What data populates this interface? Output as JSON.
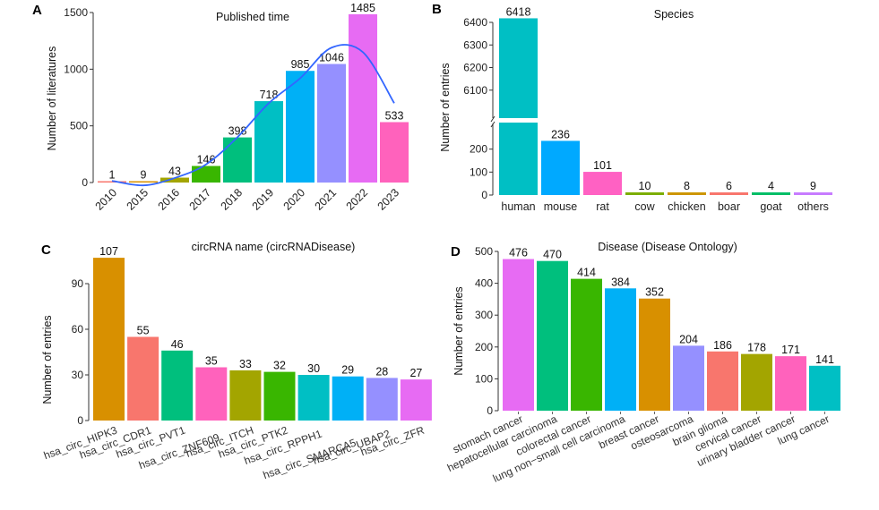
{
  "chart_data": [
    {
      "panel": "A",
      "type": "bar",
      "title": "Published time",
      "xlabel": "",
      "ylabel": "Number of literatures",
      "ylim": [
        0,
        1500
      ],
      "yticks": [
        0,
        500,
        1000,
        1500
      ],
      "categories": [
        "2010",
        "2015",
        "2016",
        "2017",
        "2018",
        "2019",
        "2020",
        "2021",
        "2022",
        "2023"
      ],
      "values": [
        1,
        9,
        43,
        146,
        398,
        718,
        985,
        1046,
        1485,
        533
      ],
      "colors": [
        "#F8766D",
        "#D89000",
        "#A3A500",
        "#39B600",
        "#00BF7D",
        "#00BFC4",
        "#00B0F6",
        "#9590FF",
        "#E76BF3",
        "#FF62BC"
      ],
      "trend_line": {
        "type": "smooth",
        "color": "#3366FF",
        "values": [
          15,
          -25,
          40,
          160,
          400,
          700,
          920,
          1190,
          1150,
          700
        ]
      },
      "grid": false
    },
    {
      "panel": "B",
      "type": "bar",
      "title": "Species",
      "xlabel": "",
      "ylabel": "Number of entries",
      "axis_break": true,
      "ylim_lower": [
        0,
        300
      ],
      "ylim_upper": [
        6000,
        6400
      ],
      "yticks_lower": [
        0,
        100,
        200
      ],
      "yticks_upper": [
        6100,
        6200,
        6300,
        6400
      ],
      "categories": [
        "human",
        "mouse",
        "rat",
        "cow",
        "chicken",
        "boar",
        "goat",
        "others"
      ],
      "values": [
        6418,
        236,
        101,
        10,
        8,
        6,
        4,
        9
      ],
      "colors": [
        "#00BFC4",
        "#00A9FF",
        "#FF61C3",
        "#7CAE00",
        "#CD9600",
        "#F8766D",
        "#00BE67",
        "#C77CFF"
      ],
      "grid": false
    },
    {
      "panel": "C",
      "type": "bar",
      "title": "circRNA name (circRNADisease)",
      "xlabel": "",
      "ylabel": "Number of entries",
      "ylim": [
        0,
        107
      ],
      "yticks": [
        0,
        30,
        60,
        90
      ],
      "categories": [
        "hsa_circ_HIPK3",
        "hsa_circ_CDR1",
        "hsa_circ_PVT1",
        "hsa_circ_ZNF609",
        "hsa_circ_ITCH",
        "hsa_circ_PTK2",
        "hsa_circ_RPPH1",
        "hsa_circ_SMARCA5",
        "hsa_circ_UBAP2",
        "hsa_circ_ZFR"
      ],
      "values": [
        107,
        55,
        46,
        35,
        33,
        32,
        30,
        29,
        28,
        27
      ],
      "colors": [
        "#D89000",
        "#F8766D",
        "#00BF7D",
        "#FF62BC",
        "#A3A500",
        "#39B600",
        "#00BFC4",
        "#00B0F6",
        "#9590FF",
        "#E76BF3"
      ],
      "grid": false
    },
    {
      "panel": "D",
      "type": "bar",
      "title": "Disease (Disease Ontology)",
      "xlabel": "",
      "ylabel": "Number of entries",
      "ylim": [
        0,
        500
      ],
      "yticks": [
        0,
        100,
        200,
        300,
        400,
        500
      ],
      "categories": [
        "stomach cancer",
        "hepatocellular carcinoma",
        "colorectal cancer",
        "lung non−small cell carcinoma",
        "breast cancer",
        "osteosarcoma",
        "brain glioma",
        "cervical cancer",
        "urinary bladder cancer",
        "lung cancer"
      ],
      "values": [
        476,
        470,
        414,
        384,
        352,
        204,
        186,
        178,
        171,
        141
      ],
      "colors": [
        "#E76BF3",
        "#00BF7D",
        "#39B600",
        "#00B0F6",
        "#D89000",
        "#9590FF",
        "#F8766D",
        "#A3A500",
        "#FF62BC",
        "#00BFC4"
      ],
      "grid": false
    }
  ]
}
